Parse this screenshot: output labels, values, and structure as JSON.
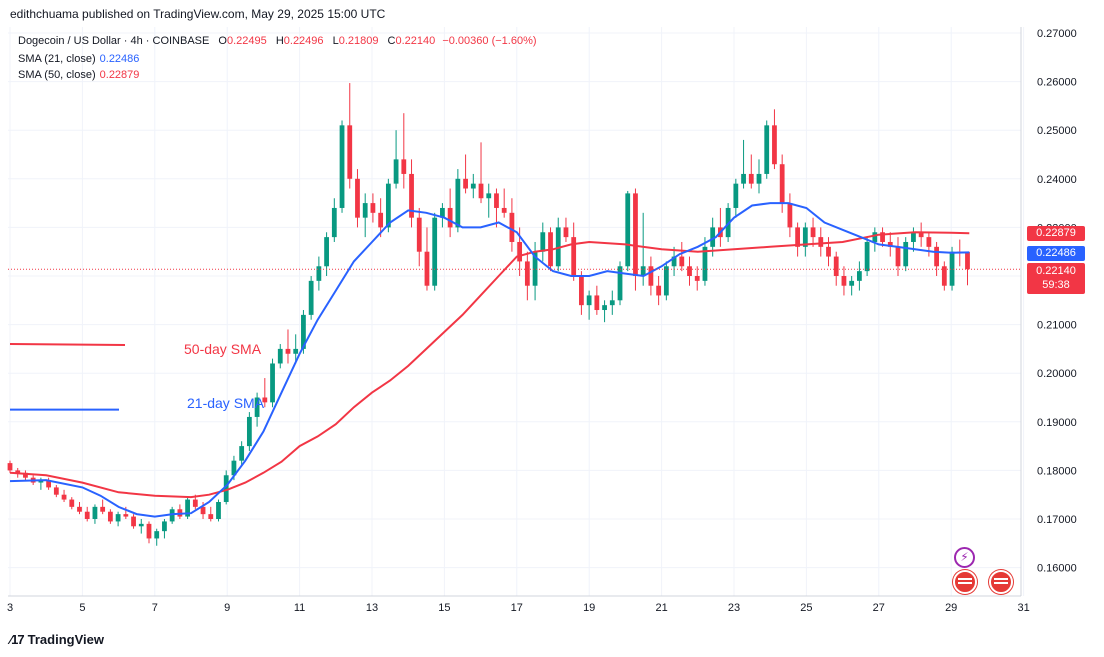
{
  "header": {
    "published": "edithchuama published on TradingView.com, May 29, 2025 15:00 UTC"
  },
  "legend": {
    "symbol": "Dogecoin / US Dollar · 4h · COINBASE",
    "open_label": "O",
    "open": "0.22495",
    "high_label": "H",
    "high": "0.22496",
    "low_label": "L",
    "low": "0.21809",
    "close_label": "C",
    "close": "0.22140",
    "change": "−0.00360 (−1.60%)",
    "sma21_label": "SMA (21, close)",
    "sma21_value": "0.22486",
    "sma50_label": "SMA (50, close)",
    "sma50_value": "0.22879"
  },
  "price_tags": {
    "sma50": "0.22879",
    "sma21": "0.22486",
    "close": "0.22140",
    "countdown": "59:38"
  },
  "annotations": {
    "sma50_text": "50-day SMA",
    "sma21_text": "21-day SMA"
  },
  "footer": {
    "brand": "TradingView"
  },
  "colors": {
    "up": "#089981",
    "down": "#f23645",
    "sma21": "#2962ff",
    "sma50": "#f23645",
    "grid": "#f0f3fa"
  },
  "chart_data": {
    "type": "candlestick",
    "title": "Dogecoin / US Dollar · 4h · COINBASE",
    "ylim": [
      0.1525,
      0.2725
    ],
    "xlim": [
      3,
      31.5
    ],
    "yticks": [
      "0.27000",
      "0.26000",
      "0.25000",
      "0.24000",
      "0.23000",
      "0.22000",
      "0.21000",
      "0.20000",
      "0.19000",
      "0.18000",
      "0.17000",
      "0.16000"
    ],
    "xticks": [
      "3",
      "5",
      "7",
      "9",
      "11",
      "13",
      "15",
      "17",
      "19",
      "21",
      "23",
      "25",
      "27",
      "29",
      "31"
    ],
    "grid": true,
    "candle_seq": [
      [
        0.1815,
        0.182,
        0.1795,
        0.18
      ],
      [
        0.18,
        0.1805,
        0.1785,
        0.1795
      ],
      [
        0.1795,
        0.18,
        0.178,
        0.1785
      ],
      [
        0.1785,
        0.179,
        0.177,
        0.1775
      ],
      [
        0.1775,
        0.1785,
        0.176,
        0.178
      ],
      [
        0.178,
        0.1785,
        0.176,
        0.1765
      ],
      [
        0.1765,
        0.177,
        0.1745,
        0.175
      ],
      [
        0.175,
        0.176,
        0.1735,
        0.174
      ],
      [
        0.174,
        0.1745,
        0.172,
        0.1725
      ],
      [
        0.1725,
        0.1735,
        0.171,
        0.1715
      ],
      [
        0.1715,
        0.1725,
        0.1695,
        0.17
      ],
      [
        0.17,
        0.173,
        0.169,
        0.1725
      ],
      [
        0.1725,
        0.174,
        0.171,
        0.1715
      ],
      [
        0.1715,
        0.172,
        0.169,
        0.1695
      ],
      [
        0.1695,
        0.1715,
        0.1685,
        0.171
      ],
      [
        0.171,
        0.1725,
        0.17,
        0.1705
      ],
      [
        0.1705,
        0.171,
        0.168,
        0.1685
      ],
      [
        0.1685,
        0.17,
        0.167,
        0.169
      ],
      [
        0.169,
        0.1695,
        0.165,
        0.166
      ],
      [
        0.166,
        0.168,
        0.1645,
        0.1675
      ],
      [
        0.1675,
        0.17,
        0.166,
        0.1695
      ],
      [
        0.1695,
        0.1725,
        0.169,
        0.172
      ],
      [
        0.172,
        0.173,
        0.17,
        0.1705
      ],
      [
        0.1705,
        0.1745,
        0.17,
        0.174
      ],
      [
        0.174,
        0.175,
        0.172,
        0.1725
      ],
      [
        0.1725,
        0.1735,
        0.17,
        0.171
      ],
      [
        0.171,
        0.1725,
        0.1695,
        0.17
      ],
      [
        0.17,
        0.174,
        0.1695,
        0.1735
      ],
      [
        0.1735,
        0.18,
        0.173,
        0.179
      ],
      [
        0.179,
        0.183,
        0.178,
        0.182
      ],
      [
        0.182,
        0.186,
        0.181,
        0.185
      ],
      [
        0.185,
        0.192,
        0.184,
        0.191
      ],
      [
        0.191,
        0.196,
        0.189,
        0.195
      ],
      [
        0.195,
        0.199,
        0.193,
        0.194
      ],
      [
        0.194,
        0.203,
        0.193,
        0.202
      ],
      [
        0.202,
        0.206,
        0.201,
        0.205
      ],
      [
        0.205,
        0.209,
        0.202,
        0.204
      ],
      [
        0.204,
        0.208,
        0.202,
        0.205
      ],
      [
        0.205,
        0.213,
        0.204,
        0.212
      ],
      [
        0.212,
        0.22,
        0.211,
        0.219
      ],
      [
        0.219,
        0.224,
        0.217,
        0.222
      ],
      [
        0.222,
        0.229,
        0.22,
        0.228
      ],
      [
        0.228,
        0.236,
        0.227,
        0.234
      ],
      [
        0.234,
        0.252,
        0.233,
        0.251
      ],
      [
        0.251,
        0.2597,
        0.238,
        0.24
      ],
      [
        0.24,
        0.242,
        0.23,
        0.232
      ],
      [
        0.232,
        0.237,
        0.228,
        0.235
      ],
      [
        0.235,
        0.237,
        0.231,
        0.233
      ],
      [
        0.233,
        0.236,
        0.228,
        0.23
      ],
      [
        0.23,
        0.24,
        0.229,
        0.239
      ],
      [
        0.239,
        0.25,
        0.238,
        0.244
      ],
      [
        0.244,
        0.2535,
        0.238,
        0.241
      ],
      [
        0.241,
        0.244,
        0.23,
        0.232
      ],
      [
        0.232,
        0.234,
        0.222,
        0.225
      ],
      [
        0.225,
        0.23,
        0.217,
        0.218
      ],
      [
        0.218,
        0.233,
        0.217,
        0.232
      ],
      [
        0.232,
        0.235,
        0.23,
        0.234
      ],
      [
        0.234,
        0.238,
        0.228,
        0.23
      ],
      [
        0.23,
        0.242,
        0.229,
        0.24
      ],
      [
        0.24,
        0.245,
        0.237,
        0.238
      ],
      [
        0.238,
        0.241,
        0.236,
        0.239
      ],
      [
        0.239,
        0.2475,
        0.235,
        0.236
      ],
      [
        0.236,
        0.239,
        0.232,
        0.237
      ],
      [
        0.237,
        0.238,
        0.23,
        0.234
      ],
      [
        0.234,
        0.238,
        0.232,
        0.233
      ],
      [
        0.233,
        0.236,
        0.225,
        0.227
      ],
      [
        0.227,
        0.23,
        0.22,
        0.223
      ],
      [
        0.223,
        0.225,
        0.215,
        0.218
      ],
      [
        0.218,
        0.227,
        0.215,
        0.225
      ],
      [
        0.225,
        0.231,
        0.223,
        0.229
      ],
      [
        0.229,
        0.23,
        0.221,
        0.222
      ],
      [
        0.222,
        0.232,
        0.221,
        0.23
      ],
      [
        0.23,
        0.232,
        0.227,
        0.228
      ],
      [
        0.228,
        0.231,
        0.219,
        0.22
      ],
      [
        0.22,
        0.221,
        0.212,
        0.214
      ],
      [
        0.214,
        0.217,
        0.211,
        0.216
      ],
      [
        0.216,
        0.218,
        0.212,
        0.213
      ],
      [
        0.213,
        0.215,
        0.2105,
        0.214
      ],
      [
        0.214,
        0.217,
        0.212,
        0.215
      ],
      [
        0.215,
        0.223,
        0.214,
        0.222
      ],
      [
        0.222,
        0.2375,
        0.221,
        0.237
      ],
      [
        0.237,
        0.238,
        0.217,
        0.22
      ],
      [
        0.22,
        0.233,
        0.218,
        0.222
      ],
      [
        0.222,
        0.224,
        0.216,
        0.218
      ],
      [
        0.218,
        0.22,
        0.214,
        0.216
      ],
      [
        0.216,
        0.223,
        0.215,
        0.222
      ],
      [
        0.222,
        0.226,
        0.22,
        0.224
      ],
      [
        0.224,
        0.227,
        0.221,
        0.222
      ],
      [
        0.222,
        0.224,
        0.218,
        0.22
      ],
      [
        0.22,
        0.222,
        0.217,
        0.219
      ],
      [
        0.219,
        0.228,
        0.218,
        0.226
      ],
      [
        0.226,
        0.232,
        0.224,
        0.23
      ],
      [
        0.23,
        0.234,
        0.226,
        0.228
      ],
      [
        0.228,
        0.235,
        0.227,
        0.234
      ],
      [
        0.234,
        0.24,
        0.232,
        0.239
      ],
      [
        0.239,
        0.248,
        0.238,
        0.241
      ],
      [
        0.241,
        0.245,
        0.238,
        0.239
      ],
      [
        0.239,
        0.244,
        0.237,
        0.241
      ],
      [
        0.241,
        0.252,
        0.24,
        0.251
      ],
      [
        0.251,
        0.2543,
        0.242,
        0.243
      ],
      [
        0.243,
        0.245,
        0.233,
        0.235
      ],
      [
        0.235,
        0.237,
        0.228,
        0.23
      ],
      [
        0.23,
        0.231,
        0.224,
        0.226
      ],
      [
        0.226,
        0.231,
        0.224,
        0.23
      ],
      [
        0.23,
        0.232,
        0.226,
        0.228
      ],
      [
        0.228,
        0.23,
        0.224,
        0.226
      ],
      [
        0.226,
        0.228,
        0.222,
        0.224
      ],
      [
        0.224,
        0.225,
        0.218,
        0.22
      ],
      [
        0.22,
        0.222,
        0.216,
        0.218
      ],
      [
        0.218,
        0.22,
        0.216,
        0.219
      ],
      [
        0.219,
        0.223,
        0.217,
        0.221
      ],
      [
        0.221,
        0.228,
        0.22,
        0.227
      ],
      [
        0.227,
        0.23,
        0.225,
        0.229
      ],
      [
        0.229,
        0.23,
        0.226,
        0.227
      ],
      [
        0.227,
        0.229,
        0.224,
        0.226
      ],
      [
        0.226,
        0.228,
        0.22,
        0.222
      ],
      [
        0.222,
        0.228,
        0.221,
        0.227
      ],
      [
        0.227,
        0.23,
        0.225,
        0.229
      ],
      [
        0.229,
        0.231,
        0.226,
        0.228
      ],
      [
        0.228,
        0.229,
        0.224,
        0.226
      ],
      [
        0.226,
        0.227,
        0.22,
        0.222
      ],
      [
        0.222,
        0.223,
        0.217,
        0.218
      ],
      [
        0.218,
        0.226,
        0.217,
        0.225
      ],
      [
        0.225,
        0.2275,
        0.222,
        0.2249
      ],
      [
        0.22495,
        0.22496,
        0.21809,
        0.2214
      ]
    ],
    "sma21": [
      [
        3,
        0.1778
      ],
      [
        4,
        0.178
      ],
      [
        5,
        0.1765
      ],
      [
        5.5,
        0.1748
      ],
      [
        6,
        0.1725
      ],
      [
        6.5,
        0.171
      ],
      [
        7,
        0.1705
      ],
      [
        7.5,
        0.171
      ],
      [
        8,
        0.1712
      ],
      [
        8.5,
        0.1735
      ],
      [
        9,
        0.177
      ],
      [
        9.5,
        0.182
      ],
      [
        10,
        0.188
      ],
      [
        10.5,
        0.196
      ],
      [
        11,
        0.204
      ],
      [
        11.5,
        0.211
      ],
      [
        12,
        0.217
      ],
      [
        12.5,
        0.223
      ],
      [
        13,
        0.227
      ],
      [
        13.5,
        0.231
      ],
      [
        14,
        0.2335
      ],
      [
        14.5,
        0.233
      ],
      [
        15,
        0.232
      ],
      [
        15.5,
        0.23
      ],
      [
        16,
        0.23
      ],
      [
        16.5,
        0.231
      ],
      [
        17,
        0.229
      ],
      [
        17.5,
        0.224
      ],
      [
        18,
        0.221
      ],
      [
        18.5,
        0.22
      ],
      [
        19,
        0.22
      ],
      [
        19.5,
        0.221
      ],
      [
        20,
        0.2205
      ],
      [
        20.5,
        0.22
      ],
      [
        21,
        0.222
      ],
      [
        21.5,
        0.2245
      ],
      [
        22,
        0.226
      ],
      [
        22.5,
        0.228
      ],
      [
        23,
        0.232
      ],
      [
        23.5,
        0.2345
      ],
      [
        24,
        0.235
      ],
      [
        24.5,
        0.235
      ],
      [
        25,
        0.234
      ],
      [
        25.5,
        0.231
      ],
      [
        26,
        0.2295
      ],
      [
        26.5,
        0.228
      ],
      [
        27,
        0.2265
      ],
      [
        27.5,
        0.226
      ],
      [
        28,
        0.2255
      ],
      [
        28.5,
        0.225
      ],
      [
        29,
        0.2248
      ],
      [
        29.5,
        0.22486
      ]
    ],
    "sma50": [
      [
        3,
        0.1795
      ],
      [
        4,
        0.179
      ],
      [
        5,
        0.1775
      ],
      [
        6,
        0.1755
      ],
      [
        7,
        0.1748
      ],
      [
        8,
        0.1745
      ],
      [
        8.5,
        0.175
      ],
      [
        9,
        0.176
      ],
      [
        9.5,
        0.1775
      ],
      [
        10,
        0.1795
      ],
      [
        10.5,
        0.1818
      ],
      [
        11,
        0.185
      ],
      [
        11.5,
        0.187
      ],
      [
        12,
        0.1895
      ],
      [
        12.5,
        0.193
      ],
      [
        13,
        0.196
      ],
      [
        13.5,
        0.1985
      ],
      [
        14,
        0.2015
      ],
      [
        14.5,
        0.205
      ],
      [
        15,
        0.2085
      ],
      [
        15.5,
        0.212
      ],
      [
        16,
        0.216
      ],
      [
        16.5,
        0.22
      ],
      [
        17,
        0.224
      ],
      [
        17.5,
        0.225
      ],
      [
        18,
        0.2255
      ],
      [
        18.5,
        0.2265
      ],
      [
        19,
        0.227
      ],
      [
        20,
        0.2265
      ],
      [
        21,
        0.2255
      ],
      [
        22,
        0.225
      ],
      [
        23,
        0.2255
      ],
      [
        24,
        0.226
      ],
      [
        25,
        0.2265
      ],
      [
        26,
        0.227
      ],
      [
        27,
        0.2285
      ],
      [
        28,
        0.229
      ],
      [
        29,
        0.2289
      ],
      [
        29.5,
        0.22879
      ]
    ],
    "old_sma50_segment": [
      [
        0.206
      ],
      [
        0.2058
      ]
    ],
    "old_sma21_segment": [
      [
        0.1925
      ],
      [
        0.1925
      ]
    ]
  }
}
